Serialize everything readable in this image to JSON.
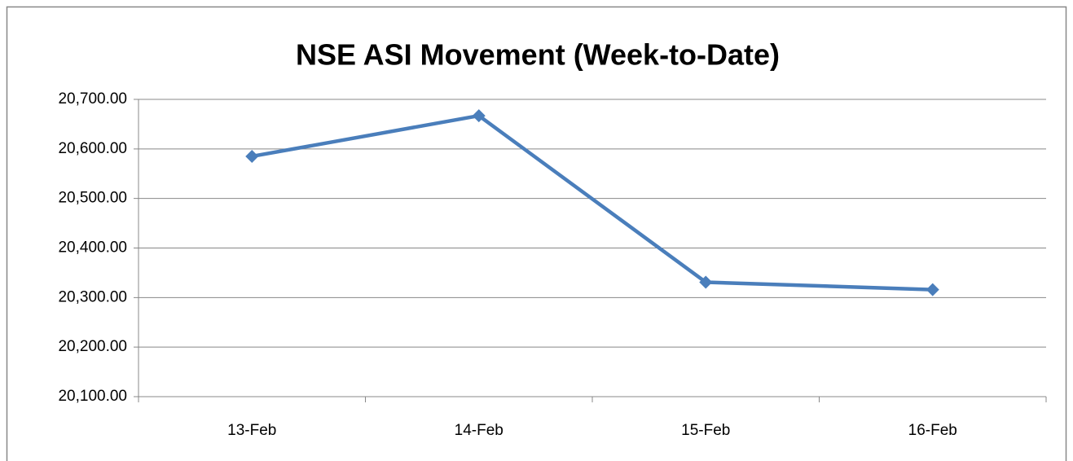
{
  "chart_data": {
    "type": "line",
    "title": "NSE ASI Movement (Week-to-Date)",
    "categories": [
      "13-Feb",
      "14-Feb",
      "15-Feb",
      "16-Feb"
    ],
    "values": [
      20585,
      20667,
      20331,
      20316
    ],
    "color": "#4a7ebb",
    "ylim": [
      20100,
      20700
    ],
    "yticks": [
      {
        "value": 20100,
        "label": "20,100.00"
      },
      {
        "value": 20200,
        "label": "20,200.00"
      },
      {
        "value": 20300,
        "label": "20,300.00"
      },
      {
        "value": 20400,
        "label": "20,400.00"
      },
      {
        "value": 20500,
        "label": "20,500.00"
      },
      {
        "value": 20600,
        "label": "20,600.00"
      },
      {
        "value": 20700,
        "label": "20,700.00"
      }
    ],
    "grid": true
  }
}
